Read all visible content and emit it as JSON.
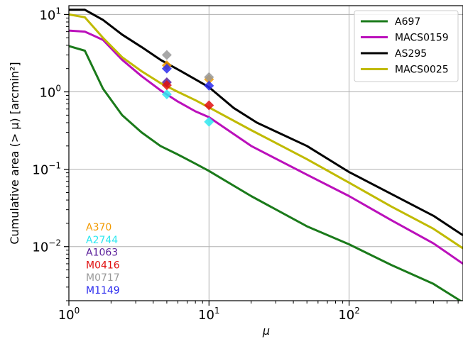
{
  "chart_data": {
    "type": "line",
    "xscale": "log",
    "yscale": "log",
    "xlim": [
      1,
      650
    ],
    "ylim": [
      0.002,
      13
    ],
    "xlabel": "μ",
    "ylabel": "Cumulative area (> μ) [arcmin²]",
    "grid": true,
    "legend_position": "top-right",
    "x_ticks": [
      {
        "value": 1,
        "base": "10",
        "exp": "0"
      },
      {
        "value": 10,
        "base": "10",
        "exp": "1"
      },
      {
        "value": 100,
        "base": "10",
        "exp": "2"
      }
    ],
    "y_ticks": [
      {
        "value": 0.01,
        "base": "10",
        "exp": "−2"
      },
      {
        "value": 0.1,
        "base": "10",
        "exp": "−1"
      },
      {
        "value": 1,
        "base": "10",
        "exp": "0"
      },
      {
        "value": 10,
        "base": "10",
        "exp": "1"
      }
    ],
    "series": [
      {
        "name": "A697",
        "color": "#1a7a1a",
        "x": [
          1.0,
          1.3,
          1.75,
          2.4,
          3.3,
          4.5,
          6.0,
          8.0,
          10,
          20,
          50,
          100,
          200,
          400,
          650
        ],
        "y": [
          3.9,
          3.4,
          1.1,
          0.5,
          0.3,
          0.2,
          0.155,
          0.118,
          0.095,
          0.045,
          0.0183,
          0.0107,
          0.0058,
          0.0033,
          0.0019
        ]
      },
      {
        "name": "MACS0159",
        "color": "#bb10bb",
        "x": [
          1.0,
          1.3,
          1.75,
          2.4,
          3.3,
          4.5,
          6.0,
          8.0,
          10,
          20,
          50,
          100,
          200,
          400,
          650
        ],
        "y": [
          6.2,
          6.0,
          4.7,
          2.6,
          1.6,
          1.05,
          0.75,
          0.56,
          0.47,
          0.2,
          0.085,
          0.045,
          0.022,
          0.011,
          0.006
        ]
      },
      {
        "name": "AS295",
        "color": "#000000",
        "x": [
          1.0,
          1.3,
          1.75,
          2.4,
          3.3,
          4.5,
          6.0,
          8.0,
          10,
          15,
          22,
          50,
          100,
          200,
          400,
          650
        ],
        "y": [
          11.5,
          11.5,
          8.5,
          5.5,
          3.8,
          2.6,
          1.95,
          1.45,
          1.15,
          0.62,
          0.4,
          0.2,
          0.092,
          0.048,
          0.025,
          0.014
        ]
      },
      {
        "name": "MACS0025",
        "color": "#c0ba00",
        "x": [
          1.0,
          1.3,
          1.75,
          2.4,
          3.3,
          4.5,
          6.0,
          8.0,
          10,
          20,
          50,
          100,
          200,
          400,
          650
        ],
        "y": [
          10.0,
          9.2,
          5.0,
          2.8,
          1.85,
          1.3,
          1.0,
          0.78,
          0.63,
          0.32,
          0.135,
          0.067,
          0.033,
          0.017,
          0.0095
        ]
      }
    ],
    "markers": [
      {
        "label": "A370",
        "color": "#f29a00",
        "points": [
          {
            "x": 5,
            "y": 2.2
          },
          {
            "x": 10,
            "y": 1.45
          }
        ]
      },
      {
        "label": "A2744",
        "color": "#2ee8f0",
        "points": [
          {
            "x": 5,
            "y": 0.93
          },
          {
            "x": 10,
            "y": 0.41
          }
        ]
      },
      {
        "label": "A1063",
        "color": "#5a1f9a",
        "points": [
          {
            "x": 5,
            "y": 1.33
          }
        ]
      },
      {
        "label": "M0416",
        "color": "#e01010",
        "points": [
          {
            "x": 5,
            "y": 1.22
          },
          {
            "x": 10,
            "y": 0.67
          }
        ]
      },
      {
        "label": "M0717",
        "color": "#999999",
        "points": [
          {
            "x": 5,
            "y": 3.0
          },
          {
            "x": 10,
            "y": 1.55
          }
        ]
      },
      {
        "label": "M1149",
        "color": "#2a2aee",
        "points": [
          {
            "x": 5,
            "y": 2.0
          },
          {
            "x": 10,
            "y": 1.2
          }
        ]
      }
    ]
  }
}
